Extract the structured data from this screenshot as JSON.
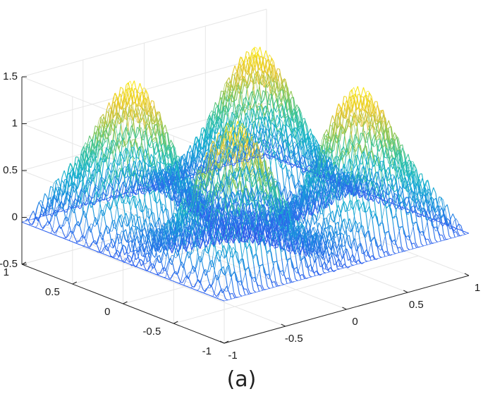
{
  "chart_data": {
    "type": "surface",
    "title": "",
    "xlabel": "",
    "ylabel": "",
    "zlabel": "",
    "xlim": [
      -1,
      1
    ],
    "ylim": [
      -1,
      1
    ],
    "zlim": [
      -0.5,
      1.5
    ],
    "x_ticks": [
      "-1",
      "-0.5",
      "0",
      "0.5",
      "1"
    ],
    "y_ticks": [
      "-1",
      "-0.5",
      "0",
      "0.5",
      "1"
    ],
    "z_ticks": [
      "-0.5",
      "0",
      "0.5",
      "1",
      "1.5"
    ],
    "grid": true,
    "colormap": "parula",
    "view": {
      "azimuth": -37.5,
      "elevation": 30
    },
    "surface": {
      "kind": "oscillatory",
      "description_points": [
        {
          "x": -0.5,
          "y": 0.5,
          "z": 1.45
        },
        {
          "x": 0.5,
          "y": 0.5,
          "z": 1.45
        },
        {
          "x": -0.5,
          "y": -0.5,
          "z": 1.3
        },
        {
          "x": 0.5,
          "y": -0.5,
          "z": 1.3
        },
        {
          "x": 0,
          "y": 0,
          "z": -0.3
        }
      ]
    }
  },
  "caption": "(a)",
  "colors": {
    "parula_low": "#3e26a8",
    "parula_mid": "#1fb0c6",
    "parula_high": "#f9d22e",
    "grid": "#e6e6e6",
    "axis": "#262626"
  }
}
